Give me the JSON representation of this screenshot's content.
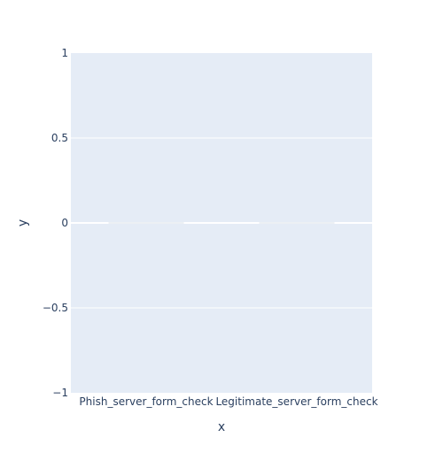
{
  "chart_data": {
    "type": "box",
    "categories": [
      "Phish_server_form_check",
      "Legitimate_server_form_check"
    ],
    "series": [
      {
        "values": [
          0,
          0
        ]
      }
    ],
    "xlabel": "x",
    "ylabel": "y",
    "ylim": [
      -1,
      1
    ],
    "yticks": [
      1,
      0.5,
      0,
      -0.5,
      -1
    ],
    "ytick_labels": [
      "1",
      "0.5",
      "0",
      "−0.5",
      "−1"
    ],
    "grid": true,
    "colors": {
      "plot_background": "#e5ecf6",
      "gridline": "#ffffff",
      "text": "#2a3f5f"
    }
  }
}
